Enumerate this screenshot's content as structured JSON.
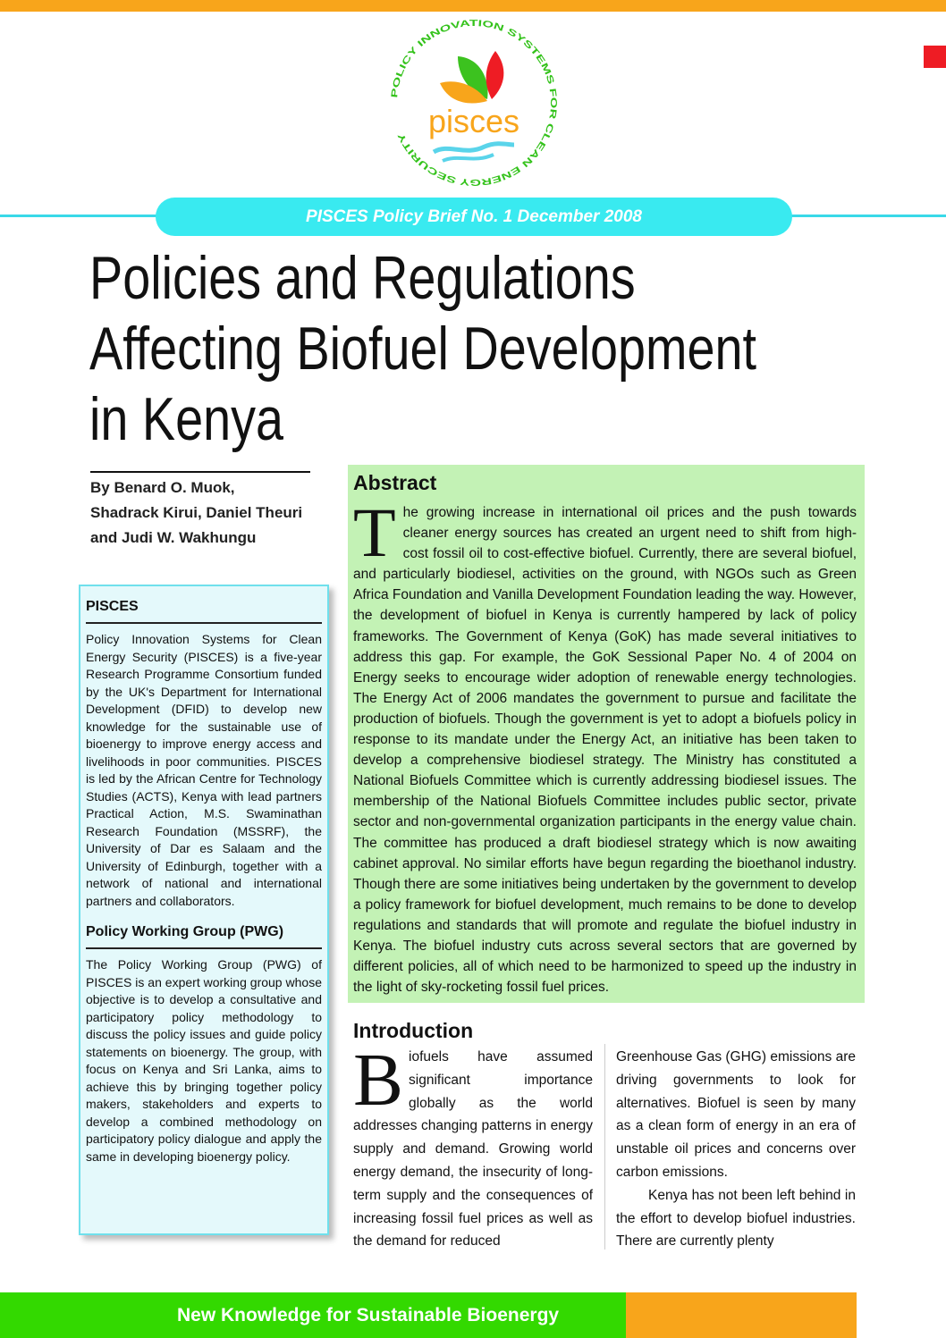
{
  "logo": {
    "ring_text": "POLICY INNOVATION SYSTEMS FOR CLEAN ENERGY SECURITY",
    "wordmark": "pisces"
  },
  "brief": "PISCES Policy Brief No. 1 December 2008",
  "title": [
    "Policies and Regulations",
    "Affecting Biofuel Development",
    "in Kenya"
  ],
  "authors": [
    "By Benard O. Muok,",
    "Shadrack Kirui, Daniel Theuri",
    "and Judi W. Wakhungu"
  ],
  "sidebar": {
    "h1": "PISCES",
    "p1": "Policy Innovation Systems for Clean Energy Security (PISCES) is a five-year Research Programme Consortium funded by the UK's Department for International Development (DFID) to develop new knowledge for the sustainable use of bioenergy to improve energy access and livelihoods in poor communities. PISCES is led by the African Centre for Technology Studies (ACTS), Kenya with lead partners Practical Action, M.S. Swaminathan Research Foundation (MSSRF), the University of Dar es Salaam and the University of Edinburgh, together with a network of national and international partners and collaborators.",
    "h2": "Policy Working Group (PWG)",
    "p2": "The Policy Working Group (PWG) of PISCES is an expert working group whose objective is to develop a consultative and participatory policy methodology to discuss the policy issues and guide policy statements on bioenergy. The group, with focus on Kenya and Sri Lanka, aims to achieve this by bringing together policy makers, stakeholders and experts to develop a combined methodology on participatory policy dialogue and apply the same in developing bioenergy policy."
  },
  "abstract": {
    "heading": "Abstract",
    "dropcap": "T",
    "text": "he growing increase in international oil prices and the push towards cleaner energy sources has created an urgent need to shift from high-cost fossil oil to cost-effective biofuel. Currently, there are several biofuel, and particularly biodiesel, activities on the ground, with NGOs such as Green Africa Foundation and Vanilla Development Foundation leading the way. However, the development of biofuel in Kenya is currently hampered by lack of policy frameworks. The Government of Kenya (GoK) has made several initiatives to address this gap. For example, the GoK Sessional Paper No. 4 of 2004 on Energy seeks to encourage wider adoption of renewable energy technologies.  The Energy Act of 2006 mandates the government to pursue and facilitate the production of biofuels. Though the government is yet to adopt a biofuels policy in response to its mandate under the Energy Act, an initiative has been taken to develop a comprehensive biodiesel strategy. The Ministry has constituted a National Biofuels Committee which is currently addressing biodiesel issues. The membership of the National Biofuels Committee includes public sector, private sector and non-governmental organization participants in the energy value chain. The committee has produced a draft biodiesel strategy which is now awaiting cabinet approval. No similar efforts have begun regarding the bioethanol industry. Though there are some initiatives being undertaken by the government to develop a policy framework for biofuel development, much remains to be done to develop regulations and standards that will promote and regulate the biofuel industry in Kenya. The biofuel industry cuts across several sectors that are governed by different policies, all of which need to be harmonized to speed up the industry in the light of sky-rocketing fossil fuel prices."
  },
  "introduction": {
    "heading": "Introduction",
    "dropcap": "B",
    "col1": "iofuels have assumed significant importance globally as the world addresses changing patterns in energy supply and demand. Growing world energy demand, the insecurity of long-term supply and the consequences of increasing fossil fuel prices as well as the demand for reduced",
    "col2_p1": "Greenhouse Gas (GHG) emissions are driving governments to look for alternatives. Biofuel is seen by many as a clean form of energy in an era of unstable oil prices and concerns over carbon emissions.",
    "col2_p2": "Kenya has not been left behind in the effort to develop biofuel industries. There are currently plenty"
  },
  "footer": "New Knowledge for Sustainable Bioenergy"
}
